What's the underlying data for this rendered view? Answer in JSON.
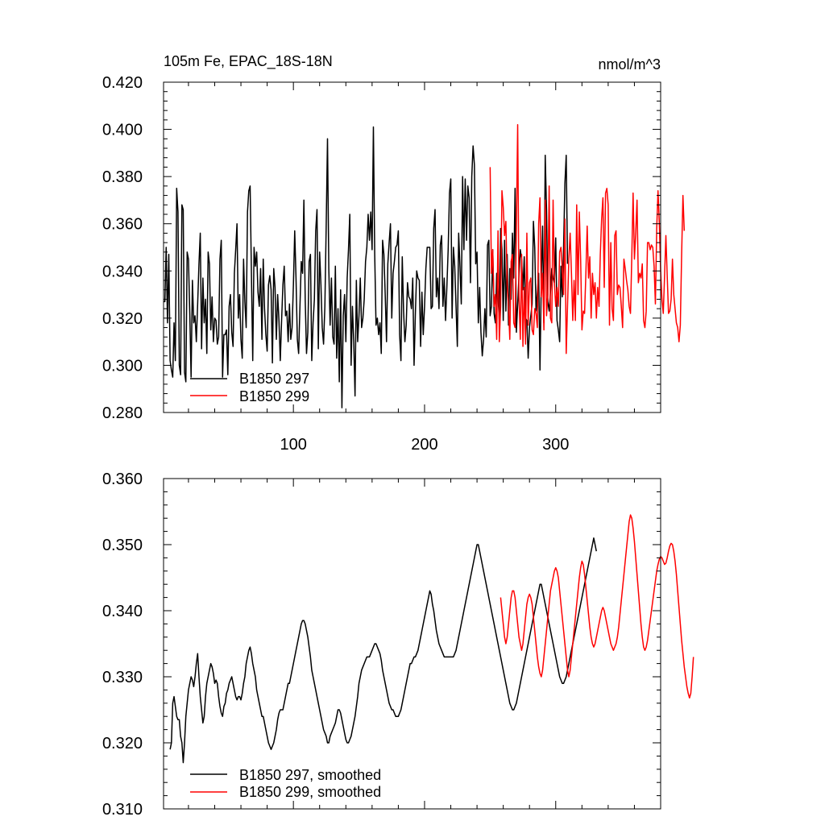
{
  "chart_data": [
    {
      "type": "line",
      "title_left": "105m Fe, EPAC_18S-18N",
      "title_right": "nmol/m^3",
      "xlabel": "",
      "ylabel": "",
      "xlim": [
        1,
        380
      ],
      "ylim": [
        0.28,
        0.42
      ],
      "yticks": [
        0.28,
        0.3,
        0.32,
        0.34,
        0.36,
        0.38,
        0.4,
        0.42
      ],
      "ytick_labels": [
        "0.280",
        "0.300",
        "0.320",
        "0.340",
        "0.360",
        "0.380",
        "0.400",
        "0.420"
      ],
      "xticks": [
        100,
        200,
        300
      ],
      "xtick_labels": [
        "100",
        "200",
        "300"
      ],
      "legend_position": "bottom-left",
      "series": [
        {
          "name": "B1850 297",
          "color": "#000000",
          "x_start": 1,
          "values": [
            0.327,
            0.327,
            0.35,
            0.318,
            0.347,
            0.302,
            0.298,
            0.295,
            0.318,
            0.302,
            0.375,
            0.365,
            0.3,
            0.296,
            0.368,
            0.366,
            0.297,
            0.293,
            0.348,
            0.345,
            0.322,
            0.295,
            0.336,
            0.318,
            0.321,
            0.31,
            0.326,
            0.343,
            0.356,
            0.307,
            0.337,
            0.318,
            0.328,
            0.305,
            0.348,
            0.343,
            0.315,
            0.329,
            0.31,
            0.32,
            0.319,
            0.309,
            0.312,
            0.345,
            0.353,
            0.295,
            0.313,
            0.313,
            0.315,
            0.296,
            0.325,
            0.33,
            0.314,
            0.308,
            0.339,
            0.349,
            0.36,
            0.32,
            0.33,
            0.311,
            0.303,
            0.345,
            0.327,
            0.316,
            0.365,
            0.374,
            0.376,
            0.339,
            0.302,
            0.35,
            0.342,
            0.348,
            0.331,
            0.325,
            0.341,
            0.311,
            0.345,
            0.324,
            0.313,
            0.306,
            0.334,
            0.338,
            0.332,
            0.301,
            0.341,
            0.333,
            0.311,
            0.33,
            0.319,
            0.302,
            0.319,
            0.334,
            0.342,
            0.321,
            0.323,
            0.31,
            0.326,
            0.311,
            0.316,
            0.334,
            0.357,
            0.337,
            0.311,
            0.305,
            0.325,
            0.344,
            0.339,
            0.37,
            0.328,
            0.305,
            0.314,
            0.344,
            0.347,
            0.302,
            0.318,
            0.328,
            0.357,
            0.366,
            0.307,
            0.348,
            0.334,
            0.316,
            0.309,
            0.325,
            0.359,
            0.396,
            0.341,
            0.317,
            0.337,
            0.312,
            0.309,
            0.342,
            0.303,
            0.324,
            0.293,
            0.332,
            0.282,
            0.321,
            0.33,
            0.31,
            0.337,
            0.349,
            0.364,
            0.3,
            0.325,
            0.31,
            0.287,
            0.336,
            0.31,
            0.321,
            0.337,
            0.316,
            0.32,
            0.328,
            0.344,
            0.35,
            0.364,
            0.353,
            0.365,
            0.349,
            0.401,
            0.347,
            0.317,
            0.32,
            0.313,
            0.318,
            0.305,
            0.353,
            0.347,
            0.33,
            0.31,
            0.343,
            0.352,
            0.36,
            0.32,
            0.339,
            0.344,
            0.35,
            0.351,
            0.357,
            0.313,
            0.302,
            0.346,
            0.323,
            0.31,
            0.317,
            0.335,
            0.329,
            0.328,
            0.324,
            0.337,
            0.3,
            0.322,
            0.34,
            0.337,
            0.336,
            0.308,
            0.331,
            0.313,
            0.325,
            0.341,
            0.35,
            0.35,
            0.35,
            0.324,
            0.325,
            0.358,
            0.366,
            0.329,
            0.337,
            0.324,
            0.351,
            0.355,
            0.325,
            0.337,
            0.319,
            0.333,
            0.349,
            0.373,
            0.379,
            0.32,
            0.35,
            0.342,
            0.325,
            0.308,
            0.356,
            0.342,
            0.326,
            0.38,
            0.349,
            0.379,
            0.353,
            0.376,
            0.371,
            0.335,
            0.38,
            0.393,
            0.385,
            0.343,
            0.348,
            0.318,
            0.333,
            0.314,
            0.304,
            0.311,
            0.324,
            0.312,
            0.351,
            0.353,
            0.321,
            0.325,
            0.349,
            0.322,
            0.318,
            0.339,
            0.329,
            0.319,
            0.358,
            0.349,
            0.319,
            0.353,
            0.323,
            0.347,
            0.317,
            0.341,
            0.328,
            0.356,
            0.337,
            0.375,
            0.314,
            0.326,
            0.338,
            0.349,
            0.345,
            0.332,
            0.346,
            0.32,
            0.319,
            0.303,
            0.316,
            0.321,
            0.326,
            0.361,
            0.35,
            0.323,
            0.331,
            0.339,
            0.298,
            0.336,
            0.359,
            0.318,
            0.389,
            0.366,
            0.327,
            0.323,
            0.331,
            0.341,
            0.337,
            0.335,
            0.354,
            0.319,
            0.315,
            0.31,
            0.342,
            0.329,
            0.35,
            0.377,
            0.389,
            0.343
          ]
        },
        {
          "name": "B1850 299",
          "color": "#ff0000",
          "x_start": 250,
          "values": [
            0.384,
            0.339,
            0.349,
            0.325,
            0.33,
            0.311,
            0.357,
            0.31,
            0.325,
            0.374,
            0.367,
            0.355,
            0.361,
            0.334,
            0.325,
            0.311,
            0.344,
            0.347,
            0.318,
            0.316,
            0.358,
            0.402,
            0.329,
            0.311,
            0.347,
            0.308,
            0.333,
            0.309,
            0.356,
            0.317,
            0.335,
            0.337,
            0.315,
            0.313,
            0.324,
            0.322,
            0.316,
            0.36,
            0.371,
            0.329,
            0.339,
            0.315,
            0.37,
            0.321,
            0.33,
            0.376,
            0.32,
            0.318,
            0.37,
            0.335,
            0.325,
            0.333,
            0.325,
            0.348,
            0.35,
            0.341,
            0.33,
            0.362,
            0.305,
            0.325,
            0.345,
            0.356,
            0.339,
            0.319,
            0.336,
            0.319,
            0.368,
            0.33,
            0.365,
            0.345,
            0.315,
            0.323,
            0.322,
            0.339,
            0.359,
            0.337,
            0.346,
            0.32,
            0.339,
            0.33,
            0.335,
            0.32,
            0.333,
            0.325,
            0.347,
            0.362,
            0.371,
            0.333,
            0.373,
            0.375,
            0.368,
            0.317,
            0.352,
            0.324,
            0.319,
            0.355,
            0.357,
            0.33,
            0.334,
            0.333,
            0.325,
            0.316,
            0.345,
            0.341,
            0.336,
            0.332,
            0.325,
            0.322,
            0.346,
            0.373,
            0.345,
            0.356,
            0.37,
            0.335,
            0.339,
            0.337,
            0.343,
            0.319,
            0.316,
            0.323,
            0.352,
            0.352,
            0.349,
            0.351,
            0.35,
            0.342,
            0.326,
            0.358,
            0.374,
            0.36,
            0.34,
            0.328,
            0.322,
            0.338,
            0.355,
            0.338,
            0.322,
            0.323,
            0.328,
            0.345,
            0.33,
            0.324,
            0.318,
            0.316,
            0.31,
            0.317,
            0.347,
            0.372,
            0.357
          ]
        }
      ]
    },
    {
      "type": "line",
      "xlim": [
        1,
        380
      ],
      "ylim": [
        0.31,
        0.36
      ],
      "yticks": [
        0.31,
        0.32,
        0.33,
        0.34,
        0.35,
        0.36
      ],
      "ytick_labels": [
        "0.310",
        "0.320",
        "0.330",
        "0.340",
        "0.350",
        "0.360"
      ],
      "xticks": [
        100,
        200,
        300
      ],
      "xtick_labels": [],
      "legend_position": "bottom-left",
      "series": [
        {
          "name": "B1850 297, smoothed",
          "color": "#000000",
          "x_start": 6,
          "values": [
            0.319,
            0.32,
            0.326,
            0.327,
            0.3255,
            0.324,
            0.3235,
            0.3235,
            0.321,
            0.32,
            0.317,
            0.32,
            0.324,
            0.326,
            0.328,
            0.329,
            0.33,
            0.3295,
            0.3285,
            0.33,
            0.332,
            0.3335,
            0.33,
            0.327,
            0.325,
            0.323,
            0.324,
            0.327,
            0.329,
            0.33,
            0.331,
            0.332,
            0.3315,
            0.3305,
            0.329,
            0.3295,
            0.329,
            0.327,
            0.3255,
            0.3245,
            0.324,
            0.3255,
            0.326,
            0.3275,
            0.328,
            0.329,
            0.3295,
            0.33,
            0.329,
            0.328,
            0.327,
            0.3265,
            0.327,
            0.327,
            0.3265,
            0.3275,
            0.329,
            0.33,
            0.332,
            0.333,
            0.334,
            0.3345,
            0.3335,
            0.332,
            0.331,
            0.33,
            0.328,
            0.327,
            0.326,
            0.325,
            0.324,
            0.324,
            0.323,
            0.322,
            0.321,
            0.32,
            0.3195,
            0.319,
            0.3195,
            0.32,
            0.321,
            0.322,
            0.3235,
            0.3245,
            0.325,
            0.325,
            0.325,
            0.326,
            0.327,
            0.328,
            0.329,
            0.329,
            0.33,
            0.331,
            0.332,
            0.333,
            0.334,
            0.335,
            0.336,
            0.337,
            0.338,
            0.3385,
            0.3385,
            0.338,
            0.337,
            0.336,
            0.3345,
            0.333,
            0.331,
            0.33,
            0.329,
            0.328,
            0.327,
            0.326,
            0.325,
            0.324,
            0.323,
            0.322,
            0.3215,
            0.321,
            0.32,
            0.32,
            0.321,
            0.3215,
            0.322,
            0.3225,
            0.323,
            0.324,
            0.325,
            0.325,
            0.3245,
            0.3235,
            0.3225,
            0.3215,
            0.3205,
            0.32,
            0.32,
            0.3205,
            0.321,
            0.322,
            0.323,
            0.324,
            0.3255,
            0.327,
            0.329,
            0.33,
            0.331,
            0.3315,
            0.332,
            0.3325,
            0.333,
            0.333,
            0.333,
            0.3335,
            0.334,
            0.3345,
            0.335,
            0.335,
            0.3345,
            0.334,
            0.3335,
            0.3325,
            0.331,
            0.33,
            0.329,
            0.328,
            0.327,
            0.326,
            0.3255,
            0.325,
            0.325,
            0.3245,
            0.324,
            0.324,
            0.324,
            0.3245,
            0.325,
            0.326,
            0.327,
            0.328,
            0.329,
            0.33,
            0.331,
            0.332,
            0.332,
            0.3325,
            0.333,
            0.333,
            0.3335,
            0.334,
            0.335,
            0.336,
            0.337,
            0.338,
            0.339,
            0.34,
            0.341,
            0.342,
            0.343,
            0.3425,
            0.341,
            0.34,
            0.3385,
            0.337,
            0.336,
            0.335,
            0.3345,
            0.334,
            0.3335,
            0.333,
            0.333,
            0.333,
            0.333,
            0.333,
            0.333,
            0.333,
            0.333,
            0.3335,
            0.334,
            0.335,
            0.336,
            0.337,
            0.338,
            0.339,
            0.34,
            0.341,
            0.342,
            0.343,
            0.344,
            0.345,
            0.346,
            0.347,
            0.348,
            0.349,
            0.35,
            0.35,
            0.349,
            0.348,
            0.347,
            0.346,
            0.345,
            0.344,
            0.343,
            0.342,
            0.341,
            0.34,
            0.339,
            0.338,
            0.337,
            0.336,
            0.335,
            0.334,
            0.333,
            0.332,
            0.331,
            0.33,
            0.329,
            0.328,
            0.327,
            0.326,
            0.3255,
            0.325,
            0.325,
            0.3255,
            0.326,
            0.327,
            0.328,
            0.329,
            0.33,
            0.331,
            0.332,
            0.333,
            0.334,
            0.335,
            0.336,
            0.337,
            0.338,
            0.339,
            0.34,
            0.341,
            0.342,
            0.343,
            0.344,
            0.344,
            0.343,
            0.342,
            0.341,
            0.34,
            0.339,
            0.338,
            0.337,
            0.336,
            0.335,
            0.334,
            0.333,
            0.332,
            0.331,
            0.33,
            0.3295,
            0.329,
            0.329,
            0.3295,
            0.33,
            0.331,
            0.332,
            0.333,
            0.334,
            0.335,
            0.336,
            0.337,
            0.338,
            0.339,
            0.34,
            0.341,
            0.342,
            0.343,
            0.344,
            0.345,
            0.346,
            0.347,
            0.348,
            0.349,
            0.35,
            0.351,
            0.35,
            0.349
          ]
        },
        {
          "name": "B1850 299, smoothed",
          "color": "#ff0000",
          "x_start": 258,
          "values": [
            0.342,
            0.34,
            0.338,
            0.336,
            0.335,
            0.336,
            0.338,
            0.34,
            0.342,
            0.343,
            0.343,
            0.342,
            0.34,
            0.338,
            0.336,
            0.335,
            0.334,
            0.335,
            0.337,
            0.339,
            0.341,
            0.342,
            0.3425,
            0.342,
            0.341,
            0.339,
            0.337,
            0.335,
            0.333,
            0.3315,
            0.3305,
            0.33,
            0.331,
            0.333,
            0.335,
            0.337,
            0.339,
            0.341,
            0.343,
            0.344,
            0.345,
            0.346,
            0.3465,
            0.346,
            0.345,
            0.343,
            0.341,
            0.339,
            0.337,
            0.335,
            0.333,
            0.331,
            0.33,
            0.331,
            0.333,
            0.335,
            0.337,
            0.339,
            0.341,
            0.343,
            0.345,
            0.3465,
            0.3475,
            0.347,
            0.3455,
            0.3435,
            0.3415,
            0.3395,
            0.3375,
            0.336,
            0.335,
            0.3345,
            0.335,
            0.336,
            0.337,
            0.338,
            0.339,
            0.34,
            0.3405,
            0.34,
            0.339,
            0.338,
            0.337,
            0.336,
            0.335,
            0.3345,
            0.334,
            0.3345,
            0.335,
            0.336,
            0.3375,
            0.3395,
            0.3415,
            0.3435,
            0.3455,
            0.3475,
            0.3495,
            0.3515,
            0.3535,
            0.3545,
            0.354,
            0.3525,
            0.3505,
            0.348,
            0.3455,
            0.343,
            0.3405,
            0.338,
            0.336,
            0.3345,
            0.334,
            0.3345,
            0.3355,
            0.337,
            0.3385,
            0.34,
            0.3415,
            0.343,
            0.3445,
            0.346,
            0.347,
            0.3478,
            0.3482,
            0.348,
            0.3475,
            0.347,
            0.3472,
            0.348,
            0.349,
            0.3498,
            0.3502,
            0.35,
            0.349,
            0.3475,
            0.3455,
            0.343,
            0.3405,
            0.338,
            0.3355,
            0.3335,
            0.3315,
            0.33,
            0.3285,
            0.3275,
            0.3268,
            0.3275,
            0.33,
            0.333
          ]
        }
      ]
    }
  ]
}
